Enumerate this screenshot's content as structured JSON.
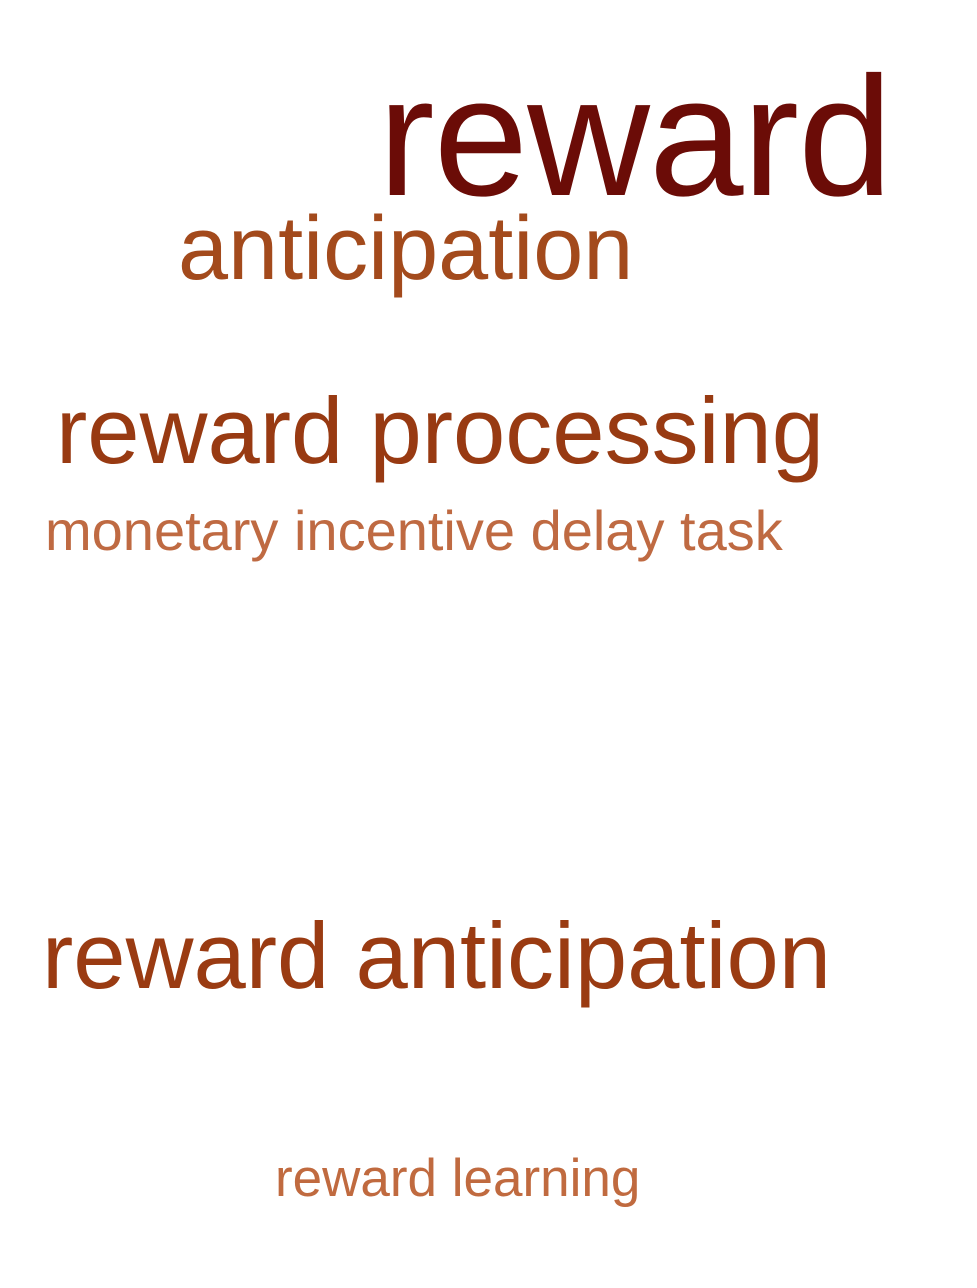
{
  "word_cloud": {
    "words": [
      {
        "text": "reward",
        "color": "#6b0c07"
      },
      {
        "text": "anticipation",
        "color": "#a34a1c"
      },
      {
        "text": "reward processing",
        "color": "#983a12"
      },
      {
        "text": "monetary incentive delay task",
        "color": "#bf6a42"
      },
      {
        "text": "reward anticipation",
        "color": "#9a3b12"
      },
      {
        "text": "reward learning",
        "color": "#c06a3f"
      }
    ]
  }
}
